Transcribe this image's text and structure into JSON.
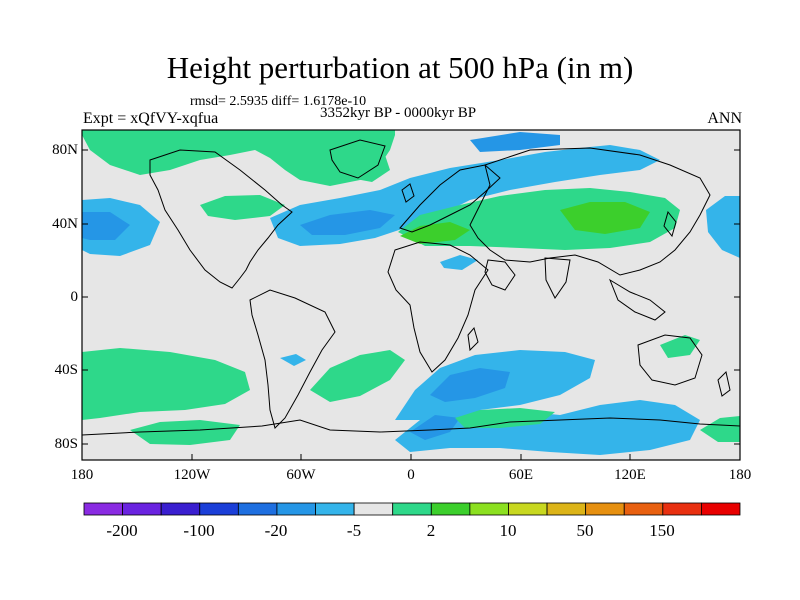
{
  "title": "Height perturbation at 500 hPa (in m)",
  "stats": "rmsd= 2.5935 diff= 1.6178e-10",
  "period": "3352kyr BP - 0000kyr BP",
  "experiment": "Expt = xQfVY-xqfua",
  "season": "ANN",
  "lat_labels": [
    "80N",
    "40N",
    "0",
    "40S",
    "80S"
  ],
  "lon_labels": [
    "180",
    "120W",
    "60W",
    "0",
    "60E",
    "120E",
    "180"
  ],
  "colorbar": {
    "colors": [
      "#8a2be2",
      "#6a23e0",
      "#3a1fd0",
      "#1b3fd8",
      "#1e6fe0",
      "#2596e6",
      "#34b4ea",
      "#e6e6e6",
      "#2ed88a",
      "#3ccf2c",
      "#8ce020",
      "#c8d820",
      "#dcb418",
      "#e69010",
      "#e86010",
      "#e83010",
      "#e80000"
    ],
    "labels": [
      "-200",
      "-100",
      "-20",
      "-5",
      "2",
      "10",
      "50",
      "150"
    ]
  },
  "colors": {
    "background": "#e6e6e6",
    "green": "#2ed88a",
    "bright_green": "#3ccf2c",
    "cyan": "#34b4ea",
    "blue": "#2596e6",
    "dark_blue": "#1e6fe0"
  }
}
